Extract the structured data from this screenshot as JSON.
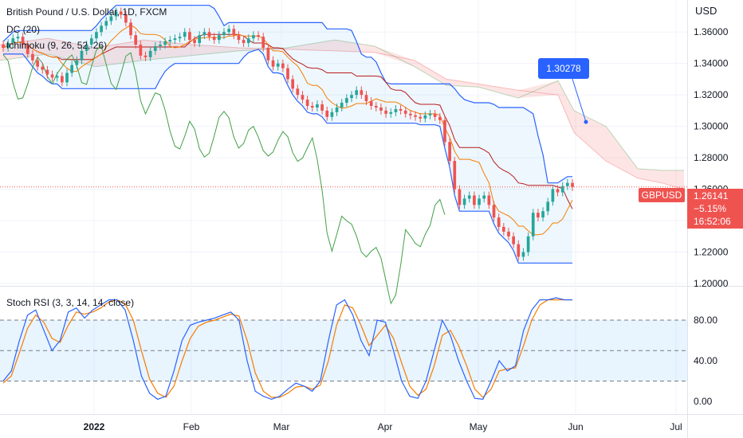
{
  "header": {
    "title": "British Pound / U.S. Dollar, 1D, FXCM",
    "indicator_dc": "DC (20)",
    "indicator_ichimoku": "Ichimoku (9, 26, 52, 26)",
    "indicator_stoch": "Stoch RSI (3, 3, 14, 14, close)"
  },
  "price_axis": {
    "currency": "USD",
    "ticks": [
      "1.36000",
      "1.34000",
      "1.32000",
      "1.30000",
      "1.28000",
      "1.26000",
      "1.24000",
      "1.22000",
      "1.20000"
    ]
  },
  "stoch_axis": {
    "ticks": [
      "80.00",
      "40.00",
      "0.00"
    ]
  },
  "time_axis": {
    "ticks": [
      "2022",
      "Feb",
      "Mar",
      "Apr",
      "May",
      "Jun",
      "Jul"
    ]
  },
  "last_price": {
    "symbol": "GBPUSD",
    "price": "1.26141",
    "change": "−5.15%",
    "countdown": "16:52:06"
  },
  "annotation": {
    "label": "1.30278",
    "value": 1.30278
  },
  "colors": {
    "up": "#26a69a",
    "down": "#ef5350",
    "dc_line": "#2962ff",
    "cloud_bull": "#a5d6a7",
    "cloud_bear": "#f8bbd0",
    "tenkan": "#2962ff",
    "kijun": "#b71c1c",
    "chikou": "#43a047",
    "stoch_k": "#2962ff",
    "stoch_d": "#f57c00",
    "band_fill": "#e3f2fd"
  },
  "chart_data": {
    "type": "candlestick",
    "symbol": "GBPUSD",
    "timeframe": "1D",
    "ylim": [
      1.2,
      1.37
    ],
    "approx_closes": [
      1.35,
      1.353,
      1.356,
      1.357,
      1.352,
      1.346,
      1.342,
      1.338,
      1.336,
      1.333,
      1.331,
      1.332,
      1.328,
      1.334,
      1.339,
      1.342,
      1.348,
      1.352,
      1.356,
      1.36,
      1.364,
      1.367,
      1.37,
      1.373,
      1.371,
      1.366,
      1.358,
      1.352,
      1.345,
      1.344,
      1.348,
      1.351,
      1.352,
      1.354,
      1.355,
      1.356,
      1.357,
      1.36,
      1.355,
      1.353,
      1.358,
      1.36,
      1.357,
      1.355,
      1.358,
      1.36,
      1.362,
      1.358,
      1.355,
      1.353,
      1.356,
      1.358,
      1.357,
      1.35,
      1.342,
      1.338,
      1.34,
      1.337,
      1.33,
      1.324,
      1.32,
      1.317,
      1.313,
      1.312,
      1.314,
      1.31,
      1.306,
      1.309,
      1.312,
      1.315,
      1.318,
      1.32,
      1.323,
      1.32,
      1.316,
      1.313,
      1.312,
      1.31,
      1.308,
      1.309,
      1.311,
      1.31,
      1.308,
      1.307,
      1.306,
      1.305,
      1.307,
      1.308,
      1.306,
      1.304,
      1.29,
      1.278,
      1.26,
      1.25,
      1.254,
      1.256,
      1.25,
      1.254,
      1.256,
      1.25,
      1.242,
      1.236,
      1.233,
      1.23,
      1.225,
      1.217,
      1.22,
      1.23,
      1.245,
      1.242,
      1.246,
      1.252,
      1.26,
      1.258,
      1.262,
      1.264,
      1.2614
    ],
    "stoch_rsi_k": [
      20,
      30,
      60,
      85,
      90,
      70,
      50,
      60,
      88,
      92,
      82,
      90,
      95,
      100,
      100,
      90,
      60,
      25,
      8,
      2,
      5,
      30,
      60,
      75,
      78,
      80,
      82,
      85,
      88,
      80,
      40,
      10,
      5,
      2,
      5,
      12,
      18,
      15,
      10,
      20,
      60,
      95,
      100,
      85,
      60,
      45,
      80,
      78,
      50,
      20,
      5,
      3,
      20,
      50,
      80,
      65,
      40,
      20,
      3,
      2,
      20,
      40,
      30,
      35,
      70,
      90,
      100,
      100,
      102,
      100,
      100
    ],
    "stoch_rsi_d": [
      18,
      25,
      48,
      72,
      85,
      78,
      62,
      58,
      75,
      88,
      86,
      88,
      92,
      98,
      100,
      96,
      80,
      50,
      22,
      8,
      4,
      15,
      40,
      62,
      74,
      78,
      80,
      83,
      86,
      84,
      60,
      28,
      10,
      4,
      4,
      8,
      14,
      15,
      12,
      16,
      40,
      75,
      95,
      92,
      75,
      55,
      65,
      75,
      62,
      38,
      15,
      6,
      12,
      35,
      65,
      70,
      55,
      35,
      12,
      4,
      12,
      30,
      32,
      33,
      55,
      80,
      95,
      100,
      100,
      100,
      100
    ],
    "stoch_levels": [
      80,
      50,
      20
    ],
    "stoch_ylim": [
      0,
      100
    ]
  }
}
